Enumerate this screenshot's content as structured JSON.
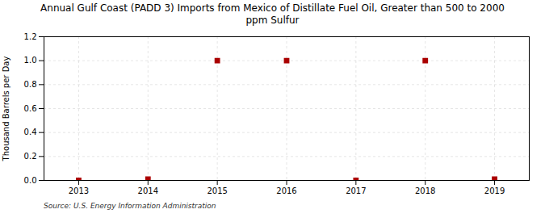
{
  "chart_data": {
    "type": "scatter",
    "title": "Annual Gulf Coast (PADD 3) Imports from Mexico of Distillate Fuel Oil, Greater than 500 to 2000\nppm Sulfur",
    "ylabel": "Thousand Barrels per Day",
    "source": "Source: U.S. Energy Information Administration",
    "x": [
      2013,
      2014,
      2015,
      2016,
      2017,
      2018,
      2019
    ],
    "values": [
      0,
      0.01,
      1.0,
      1.0,
      0,
      1.0,
      0.01
    ],
    "color": "#aa0000",
    "marker": "square",
    "xlim": [
      2012.5,
      2019.5
    ],
    "xticks": [
      2013,
      2014,
      2015,
      2016,
      2017,
      2018,
      2019
    ],
    "ylim": [
      0.0,
      1.2
    ],
    "yticks": [
      {
        "value": 0.0,
        "label": "0.0"
      },
      {
        "value": 0.2,
        "label": "0.2"
      },
      {
        "value": 0.4,
        "label": "0.4"
      },
      {
        "value": 0.6,
        "label": "0.6"
      },
      {
        "value": 0.8,
        "label": "0.8"
      },
      {
        "value": 1.0,
        "label": "1.0"
      },
      {
        "value": 1.2,
        "label": "1.2"
      }
    ],
    "grid": true
  }
}
